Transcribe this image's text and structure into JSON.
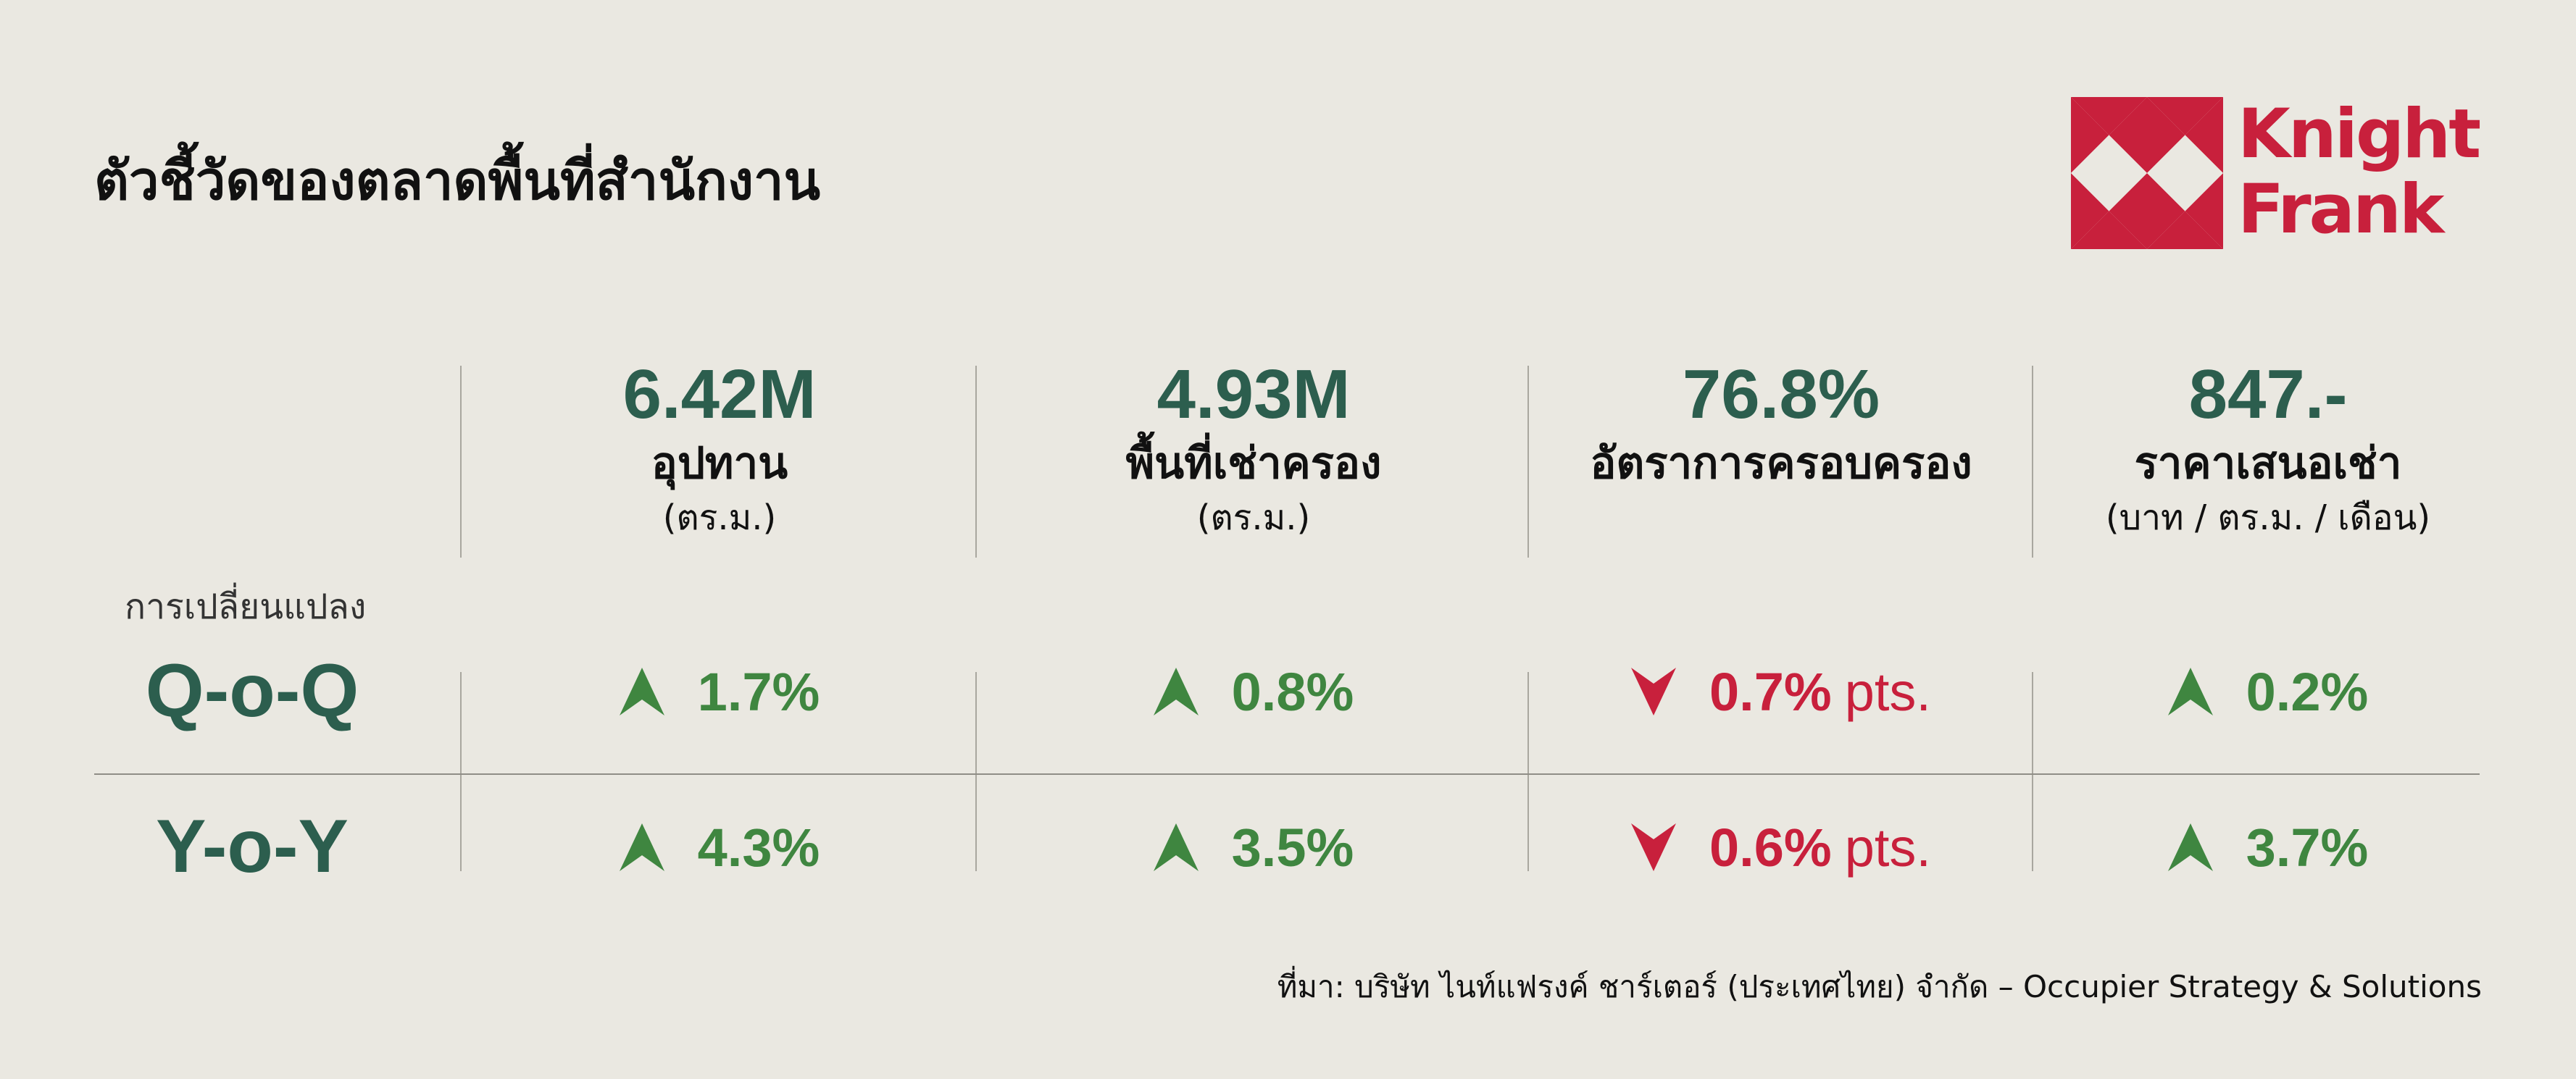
{
  "title": "ตัวชี้วัดของตลาดพื้นที่สำนักงาน",
  "brand": {
    "line1": "Knight",
    "line2": "Frank",
    "color": "#c8203c"
  },
  "columns": [
    {
      "value": "6.42M",
      "label": "อุปทาน",
      "unit": "(ตร.ม.)"
    },
    {
      "value": "4.93M",
      "label": "พื้นที่เช่าครอง",
      "unit": "(ตร.ม.)"
    },
    {
      "value": "76.8%",
      "label": "อัตราการครอบครอง",
      "unit": ""
    },
    {
      "value": "847.-",
      "label": "ราคาเสนอเช่า",
      "unit": "(บาท / ตร.ม. / เดือน)"
    }
  ],
  "change_label": "การเปลี่ยนแปลง",
  "rows": [
    {
      "label": "Q-o-Q",
      "cells": [
        {
          "direction": "up",
          "value": "1.7%",
          "suffix": ""
        },
        {
          "direction": "up",
          "value": "0.8%",
          "suffix": ""
        },
        {
          "direction": "down",
          "value": "0.7%",
          "suffix": "pts."
        },
        {
          "direction": "up",
          "value": "0.2%",
          "suffix": ""
        }
      ]
    },
    {
      "label": "Y-o-Y",
      "cells": [
        {
          "direction": "up",
          "value": "4.3%",
          "suffix": ""
        },
        {
          "direction": "up",
          "value": "3.5%",
          "suffix": ""
        },
        {
          "direction": "down",
          "value": "0.6%",
          "suffix": "pts."
        },
        {
          "direction": "up",
          "value": "3.7%",
          "suffix": ""
        }
      ]
    }
  ],
  "colors": {
    "background": "#eae8e1",
    "accent_green": "#2c5e4e",
    "up_green": "#3f8640",
    "down_red": "#c8203c"
  },
  "icons": {
    "up": "arrow-up-icon",
    "down": "arrow-down-icon"
  },
  "source": "ที่มา: บริษัท ไนท์แฟรงค์ ชาร์เตอร์ (ประเทศไทย) จำกัด – Occupier Strategy & Solutions"
}
